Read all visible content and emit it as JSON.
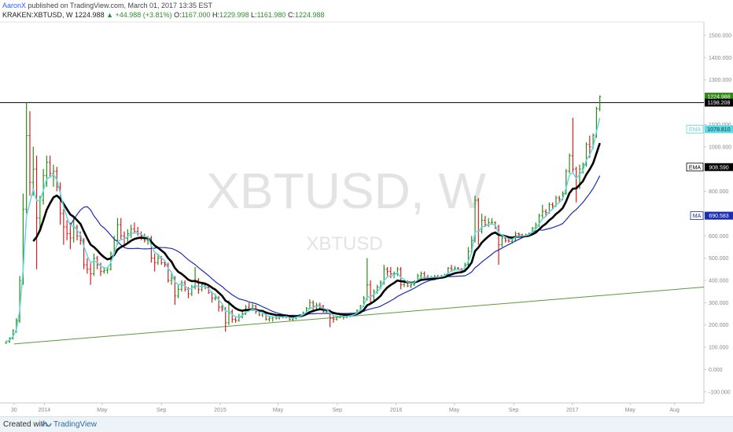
{
  "header": {
    "author": "AaronX",
    "published_text": "published on TradingView.com, March 01, 2017 13:35 EST",
    "symbol_line": "KRAKEN:XBTUSD, W",
    "last": "1224.988",
    "change": "▲ +44.988 (+3.81%)",
    "open_label": "O:",
    "open": "1167.000",
    "high_label": "H:",
    "high": "1229.998",
    "low_label": "L:",
    "low": "1161.980",
    "close_label": "C:",
    "close": "1224.988"
  },
  "watermark": {
    "main": "XBTUSD, W",
    "sub": "XBTUSD"
  },
  "footer": {
    "created_with": "Created with",
    "brand": "TradingView"
  },
  "colors": {
    "up": "#2e8b14",
    "down": "#d42020",
    "ema_fast": "#5fd8e4",
    "ema_slow": "#000000",
    "ma": "#1b2db3",
    "trendline": "#5a9a3a",
    "horizontal": "#000000"
  },
  "chart_data": {
    "type": "candlestick",
    "timeframe": "W",
    "y_axis": {
      "ticks": [
        -100,
        0,
        100,
        200,
        300,
        400,
        500,
        600,
        700,
        800,
        900,
        1000,
        1100,
        1200,
        1300,
        1400,
        1500
      ],
      "tick_labels": [
        "-100.000",
        "0.000",
        "100.000",
        "200.000",
        "300.000",
        "400.000",
        "500.000",
        "600.000",
        "700.000",
        "800.000",
        "900.000",
        "1000.000",
        "1100.000",
        "1200.000",
        "1300.000",
        "1400.000",
        "1500.000"
      ],
      "range": [
        -150,
        1560
      ]
    },
    "x_axis": {
      "range": [
        "2013-10-01",
        "2017-10-01"
      ],
      "tick_dates": [
        "2013-10-30",
        "2014-01-01",
        "2014-05-01",
        "2014-09-01",
        "2015-01-01",
        "2015-05-01",
        "2015-09-01",
        "2016-01-01",
        "2016-05-01",
        "2016-09-01",
        "2017-01-01",
        "2017-05-01",
        "2017-08-01"
      ],
      "tick_labels": [
        "30",
        "2014",
        "May",
        "Sep",
        "2015",
        "May",
        "Sep",
        "2016",
        "May",
        "Sep",
        "2017",
        "May",
        "Aug"
      ]
    },
    "price_tags": [
      {
        "label": "",
        "value": "1224.988",
        "y": 1224.988,
        "kind": "last"
      },
      {
        "label": "",
        "value": "1198.208",
        "y": 1198.208,
        "kind": "hline"
      },
      {
        "label": "EMA",
        "value": "1078.810",
        "y": 1078.81,
        "kind": "ema_fast"
      },
      {
        "label": "EMA",
        "value": "908.590",
        "y": 908.59,
        "kind": "ema_slow"
      },
      {
        "label": "MA",
        "value": "690.583",
        "y": 690.583,
        "kind": "ma"
      }
    ],
    "horizontal_line": 1198.208,
    "trendline": {
      "start": [
        "2013-10-30",
        115
      ],
      "end": [
        "2017-10-01",
        370
      ]
    },
    "key_points": [
      {
        "x": "2013-10-30",
        "y": 120
      },
      {
        "x": "2013-12-01",
        "y": 1198
      },
      {
        "x": "2015-01-15",
        "y": 180
      },
      {
        "x": "2017-03-01",
        "y": 1225
      }
    ],
    "candles_estimated": [
      [
        "2013-10-14",
        120,
        130,
        115,
        125
      ],
      [
        "2013-10-21",
        125,
        145,
        120,
        140
      ],
      [
        "2013-10-28",
        140,
        180,
        135,
        175
      ],
      [
        "2013-11-04",
        175,
        230,
        165,
        220
      ],
      [
        "2013-11-11",
        220,
        420,
        210,
        400
      ],
      [
        "2013-11-18",
        400,
        790,
        380,
        720
      ],
      [
        "2013-11-25",
        720,
        1198,
        700,
        1050
      ],
      [
        "2013-12-02",
        1050,
        1160,
        780,
        840
      ],
      [
        "2013-12-09",
        840,
        1000,
        780,
        900
      ],
      [
        "2013-12-16",
        900,
        960,
        450,
        680
      ],
      [
        "2013-12-23",
        680,
        780,
        620,
        760
      ],
      [
        "2013-12-30",
        760,
        900,
        740,
        870
      ],
      [
        "2014-01-06",
        870,
        960,
        820,
        930
      ],
      [
        "2014-01-13",
        930,
        960,
        860,
        880
      ],
      [
        "2014-01-20",
        880,
        920,
        820,
        890
      ],
      [
        "2014-01-27",
        890,
        910,
        800,
        820
      ],
      [
        "2014-02-03",
        820,
        840,
        650,
        700
      ],
      [
        "2014-02-10",
        700,
        720,
        560,
        640
      ],
      [
        "2014-02-17",
        640,
        670,
        580,
        610
      ],
      [
        "2014-02-24",
        610,
        660,
        540,
        590
      ],
      [
        "2014-03-03",
        590,
        680,
        570,
        640
      ],
      [
        "2014-03-10",
        640,
        650,
        580,
        600
      ],
      [
        "2014-03-17",
        600,
        620,
        560,
        580
      ],
      [
        "2014-03-24",
        580,
        590,
        450,
        470
      ],
      [
        "2014-03-31",
        470,
        500,
        430,
        450
      ],
      [
        "2014-04-07",
        450,
        480,
        380,
        430
      ],
      [
        "2014-04-14",
        430,
        520,
        420,
        500
      ],
      [
        "2014-04-21",
        500,
        510,
        450,
        470
      ],
      [
        "2014-04-28",
        470,
        480,
        420,
        440
      ],
      [
        "2014-05-05",
        440,
        460,
        430,
        445
      ],
      [
        "2014-05-12",
        445,
        460,
        430,
        450
      ],
      [
        "2014-05-19",
        450,
        530,
        445,
        520
      ],
      [
        "2014-05-26",
        520,
        600,
        510,
        580
      ],
      [
        "2014-06-02",
        580,
        680,
        560,
        650
      ],
      [
        "2014-06-09",
        650,
        680,
        580,
        600
      ],
      [
        "2014-06-16",
        600,
        620,
        560,
        590
      ],
      [
        "2014-06-23",
        590,
        630,
        570,
        610
      ],
      [
        "2014-06-30",
        610,
        650,
        590,
        630
      ],
      [
        "2014-07-07",
        630,
        660,
        610,
        620
      ],
      [
        "2014-07-14",
        620,
        640,
        600,
        610
      ],
      [
        "2014-07-21",
        610,
        620,
        580,
        600
      ],
      [
        "2014-07-28",
        600,
        610,
        570,
        580
      ],
      [
        "2014-08-04",
        580,
        600,
        560,
        590
      ],
      [
        "2014-08-11",
        590,
        600,
        480,
        500
      ],
      [
        "2014-08-18",
        500,
        520,
        440,
        480
      ],
      [
        "2014-08-25",
        480,
        520,
        470,
        500
      ],
      [
        "2014-09-01",
        500,
        510,
        470,
        480
      ],
      [
        "2014-09-08",
        480,
        490,
        460,
        470
      ],
      [
        "2014-09-15",
        470,
        480,
        390,
        400
      ],
      [
        "2014-09-22",
        400,
        440,
        380,
        410
      ],
      [
        "2014-09-29",
        410,
        420,
        290,
        330
      ],
      [
        "2014-10-06",
        330,
        380,
        320,
        360
      ],
      [
        "2014-10-13",
        360,
        400,
        350,
        390
      ],
      [
        "2014-10-20",
        390,
        400,
        350,
        360
      ],
      [
        "2014-10-27",
        360,
        370,
        320,
        340
      ],
      [
        "2014-11-03",
        340,
        380,
        330,
        370
      ],
      [
        "2014-11-10",
        370,
        460,
        360,
        400
      ],
      [
        "2014-11-17",
        400,
        410,
        340,
        360
      ],
      [
        "2014-11-24",
        360,
        390,
        350,
        380
      ],
      [
        "2014-12-01",
        380,
        390,
        360,
        370
      ],
      [
        "2014-12-08",
        370,
        375,
        340,
        345
      ],
      [
        "2014-12-15",
        345,
        350,
        300,
        320
      ],
      [
        "2014-12-22",
        320,
        340,
        310,
        320
      ],
      [
        "2014-12-29",
        320,
        330,
        260,
        280
      ],
      [
        "2015-01-05",
        280,
        290,
        260,
        270
      ],
      [
        "2015-01-12",
        270,
        280,
        170,
        210
      ],
      [
        "2015-01-19",
        210,
        310,
        200,
        260
      ],
      [
        "2015-01-26",
        260,
        270,
        210,
        225
      ],
      [
        "2015-02-02",
        225,
        240,
        210,
        220
      ],
      [
        "2015-02-09",
        220,
        250,
        215,
        235
      ],
      [
        "2015-02-16",
        235,
        260,
        230,
        250
      ],
      [
        "2015-02-23",
        250,
        290,
        245,
        280
      ],
      [
        "2015-03-02",
        280,
        300,
        260,
        270
      ],
      [
        "2015-03-09",
        270,
        295,
        265,
        285
      ],
      [
        "2015-03-16",
        285,
        290,
        250,
        260
      ],
      [
        "2015-03-23",
        260,
        265,
        240,
        245
      ],
      [
        "2015-03-30",
        245,
        260,
        235,
        255
      ],
      [
        "2015-04-06",
        255,
        260,
        220,
        225
      ],
      [
        "2015-04-13",
        225,
        240,
        215,
        230
      ],
      [
        "2015-04-20",
        230,
        240,
        215,
        235
      ],
      [
        "2015-04-27",
        235,
        245,
        225,
        230
      ],
      [
        "2015-05-04",
        230,
        245,
        225,
        240
      ],
      [
        "2015-05-11",
        240,
        245,
        230,
        235
      ],
      [
        "2015-05-18",
        235,
        245,
        230,
        240
      ],
      [
        "2015-05-25",
        240,
        245,
        220,
        225
      ],
      [
        "2015-06-01",
        225,
        235,
        220,
        230
      ],
      [
        "2015-06-08",
        230,
        245,
        225,
        240
      ],
      [
        "2015-06-15",
        240,
        250,
        235,
        245
      ],
      [
        "2015-06-22",
        245,
        260,
        240,
        255
      ],
      [
        "2015-06-29",
        255,
        280,
        250,
        275
      ],
      [
        "2015-07-06",
        275,
        315,
        270,
        300
      ],
      [
        "2015-07-13",
        300,
        310,
        265,
        285
      ],
      [
        "2015-07-20",
        285,
        300,
        270,
        290
      ],
      [
        "2015-07-27",
        290,
        300,
        275,
        285
      ],
      [
        "2015-08-03",
        285,
        290,
        255,
        260
      ],
      [
        "2015-08-10",
        260,
        270,
        255,
        265
      ],
      [
        "2015-08-17",
        265,
        270,
        190,
        230
      ],
      [
        "2015-08-24",
        230,
        240,
        210,
        225
      ],
      [
        "2015-08-31",
        225,
        240,
        220,
        235
      ],
      [
        "2015-09-07",
        235,
        250,
        230,
        240
      ],
      [
        "2015-09-14",
        240,
        245,
        225,
        235
      ],
      [
        "2015-09-21",
        235,
        245,
        230,
        240
      ],
      [
        "2015-09-28",
        240,
        250,
        235,
        245
      ],
      [
        "2015-10-05",
        245,
        255,
        240,
        250
      ],
      [
        "2015-10-12",
        250,
        270,
        245,
        265
      ],
      [
        "2015-10-19",
        265,
        290,
        260,
        285
      ],
      [
        "2015-10-26",
        285,
        330,
        280,
        320
      ],
      [
        "2015-11-02",
        320,
        500,
        310,
        380
      ],
      [
        "2015-11-09",
        380,
        400,
        300,
        330
      ],
      [
        "2015-11-16",
        330,
        360,
        310,
        350
      ],
      [
        "2015-11-23",
        350,
        380,
        340,
        370
      ],
      [
        "2015-11-30",
        370,
        400,
        360,
        390
      ],
      [
        "2015-12-07",
        390,
        470,
        380,
        450
      ],
      [
        "2015-12-14",
        450,
        460,
        420,
        440
      ],
      [
        "2015-12-21",
        440,
        460,
        410,
        430
      ],
      [
        "2015-12-28",
        430,
        440,
        410,
        430
      ],
      [
        "2016-01-04",
        430,
        460,
        420,
        450
      ],
      [
        "2016-01-11",
        450,
        460,
        360,
        380
      ],
      [
        "2016-01-18",
        380,
        400,
        370,
        390
      ],
      [
        "2016-01-25",
        390,
        400,
        370,
        375
      ],
      [
        "2016-02-01",
        375,
        390,
        365,
        380
      ],
      [
        "2016-02-08",
        380,
        400,
        375,
        395
      ],
      [
        "2016-02-15",
        395,
        430,
        390,
        420
      ],
      [
        "2016-02-22",
        420,
        440,
        400,
        430
      ],
      [
        "2016-02-29",
        430,
        440,
        410,
        415
      ],
      [
        "2016-03-07",
        415,
        425,
        405,
        410
      ],
      [
        "2016-03-14",
        410,
        420,
        405,
        415
      ],
      [
        "2016-03-21",
        415,
        425,
        410,
        418
      ],
      [
        "2016-03-28",
        418,
        425,
        410,
        415
      ],
      [
        "2016-04-04",
        415,
        425,
        410,
        420
      ],
      [
        "2016-04-11",
        420,
        430,
        415,
        425
      ],
      [
        "2016-04-18",
        425,
        460,
        420,
        455
      ],
      [
        "2016-04-25",
        455,
        470,
        440,
        450
      ],
      [
        "2016-05-02",
        450,
        465,
        445,
        455
      ],
      [
        "2016-05-09",
        455,
        460,
        445,
        450
      ],
      [
        "2016-05-16",
        450,
        455,
        440,
        445
      ],
      [
        "2016-05-23",
        445,
        480,
        440,
        470
      ],
      [
        "2016-05-30",
        470,
        550,
        465,
        530
      ],
      [
        "2016-06-06",
        530,
        600,
        520,
        580
      ],
      [
        "2016-06-13",
        580,
        780,
        570,
        760
      ],
      [
        "2016-06-20",
        760,
        770,
        560,
        620
      ],
      [
        "2016-06-27",
        620,
        700,
        610,
        670
      ],
      [
        "2016-07-04",
        670,
        690,
        640,
        650
      ],
      [
        "2016-07-11",
        650,
        680,
        640,
        660
      ],
      [
        "2016-07-18",
        660,
        680,
        650,
        660
      ],
      [
        "2016-07-25",
        660,
        665,
        630,
        640
      ],
      [
        "2016-08-01",
        640,
        650,
        470,
        560
      ],
      [
        "2016-08-08",
        560,
        600,
        550,
        590
      ],
      [
        "2016-08-15",
        590,
        595,
        570,
        580
      ],
      [
        "2016-08-22",
        580,
        590,
        570,
        575
      ],
      [
        "2016-08-29",
        575,
        590,
        565,
        580
      ],
      [
        "2016-09-05",
        580,
        620,
        575,
        610
      ],
      [
        "2016-09-12",
        610,
        615,
        600,
        605
      ],
      [
        "2016-09-19",
        605,
        610,
        590,
        600
      ],
      [
        "2016-09-26",
        600,
        610,
        595,
        605
      ],
      [
        "2016-10-03",
        605,
        615,
        600,
        610
      ],
      [
        "2016-10-10",
        610,
        640,
        605,
        635
      ],
      [
        "2016-10-17",
        635,
        660,
        630,
        650
      ],
      [
        "2016-10-24",
        650,
        700,
        640,
        690
      ],
      [
        "2016-10-31",
        690,
        740,
        680,
        710
      ],
      [
        "2016-11-07",
        710,
        720,
        690,
        705
      ],
      [
        "2016-11-14",
        705,
        750,
        700,
        740
      ],
      [
        "2016-11-21",
        740,
        750,
        720,
        735
      ],
      [
        "2016-11-28",
        735,
        780,
        730,
        770
      ],
      [
        "2016-12-05",
        770,
        780,
        750,
        765
      ],
      [
        "2016-12-12",
        765,
        800,
        760,
        790
      ],
      [
        "2016-12-19",
        790,
        900,
        785,
        890
      ],
      [
        "2016-12-26",
        890,
        970,
        880,
        960
      ],
      [
        "2017-01-02",
        960,
        1130,
        880,
        900
      ],
      [
        "2017-01-09",
        900,
        910,
        750,
        820
      ],
      [
        "2017-01-16",
        820,
        920,
        810,
        900
      ],
      [
        "2017-01-23",
        900,
        930,
        880,
        920
      ],
      [
        "2017-01-30",
        920,
        1020,
        910,
        1010
      ],
      [
        "2017-02-06",
        1010,
        1050,
        950,
        1000
      ],
      [
        "2017-02-13",
        1000,
        1060,
        990,
        1050
      ],
      [
        "2017-02-20",
        1050,
        1180,
        1040,
        1170
      ],
      [
        "2017-02-27",
        1170,
        1230,
        1160,
        1225
      ]
    ]
  }
}
